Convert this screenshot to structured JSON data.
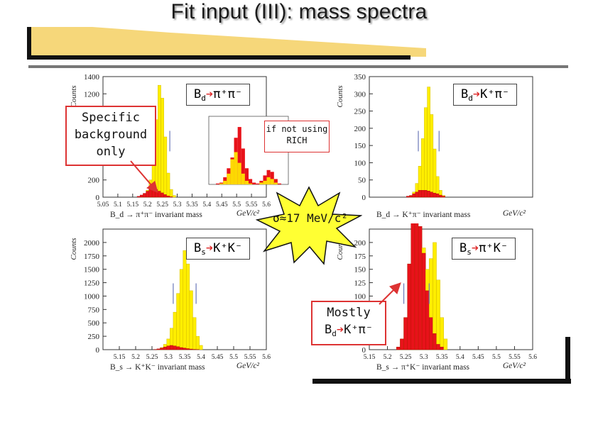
{
  "title": "Fit input (III): mass spectra",
  "labels": {
    "bd_pipi_B": "B",
    "bd_pipi_d": "d",
    "bd_pipi_rest": "π⁺π⁻",
    "bd_kpi_B": "B",
    "bd_kpi_d": "d",
    "bd_kpi_rest": "K⁺π⁻",
    "bs_kk_B": "B",
    "bs_kk_s": "s",
    "bs_kk_rest": "K⁺K⁻",
    "bs_pik_B": "B",
    "bs_pik_s": "s",
    "bs_pik_rest": "π⁺K⁻",
    "specific": "Specific background only",
    "specific_l1": "Specific",
    "specific_l2": "background",
    "specific_l3": "only",
    "rich_l1": "if not using",
    "rich_l2": "RICH",
    "sigma": "σ≈17 MeV/c²",
    "mostly_l1": "Mostly",
    "mostly_l2_B": "B",
    "mostly_l2_d": "d",
    "mostly_l2_rest": "K⁺π⁻"
  },
  "colors": {
    "signal": "#ffee00",
    "background": "#e8121a",
    "frame": "#222222",
    "title_bar": "#f6d77a"
  },
  "chart_data": [
    {
      "type": "bar",
      "name": "Bd->pi+pi-",
      "xlabel": "B_d → π⁺π⁻ invariant mass",
      "xunit": "GeV/c²",
      "ylabel": "Counts",
      "xlim": [
        5.05,
        5.6
      ],
      "ylim": [
        0,
        1400
      ],
      "xticks": [
        "5.05",
        "5.1",
        "5.15",
        "5.2",
        "5.25",
        "5.3",
        "5.35",
        "5.4",
        "5.45",
        "5.5",
        "5.55",
        "5.6"
      ],
      "yticks": [
        "0",
        "200",
        "400",
        "600",
        "800",
        "1000",
        "1200",
        "1400"
      ],
      "x": [
        5.16,
        5.17,
        5.18,
        5.19,
        5.2,
        5.21,
        5.22,
        5.23,
        5.24,
        5.25,
        5.26,
        5.27,
        5.28,
        5.29,
        5.3
      ],
      "signal": [
        0,
        0,
        10,
        30,
        80,
        200,
        480,
        900,
        1300,
        1150,
        700,
        280,
        90,
        20,
        0
      ],
      "background": [
        0,
        10,
        25,
        45,
        70,
        100,
        110,
        90,
        70,
        50,
        30,
        15,
        5,
        0,
        0
      ]
    },
    {
      "type": "bar",
      "name": "Bd->K+pi-",
      "xlabel": "B_d → K⁺π⁻ invariant mass",
      "xunit": "GeV/c²",
      "ylabel": "Counts",
      "xlim": [
        5.05,
        5.6
      ],
      "ylim": [
        0,
        350
      ],
      "yticks": [
        "0",
        "50",
        "100",
        "150",
        "200",
        "250",
        "300",
        "350"
      ],
      "x": [
        5.18,
        5.19,
        5.2,
        5.21,
        5.22,
        5.23,
        5.24,
        5.25,
        5.26,
        5.27,
        5.28,
        5.29,
        5.3,
        5.31
      ],
      "signal": [
        0,
        5,
        15,
        40,
        90,
        170,
        260,
        320,
        240,
        140,
        60,
        20,
        5,
        0
      ],
      "background": [
        3,
        5,
        10,
        15,
        20,
        20,
        20,
        18,
        15,
        12,
        10,
        6,
        3,
        0
      ]
    },
    {
      "type": "bar",
      "name": "Bs->K+K-",
      "xlabel": "B_s → K⁺K⁻ invariant mass",
      "xunit": "GeV/c²",
      "ylabel": "Counts",
      "xlim": [
        5.1,
        5.6
      ],
      "ylim": [
        0,
        2250
      ],
      "xticks": [
        "5.15",
        "5.2",
        "5.25",
        "5.3",
        "5.35",
        "5.4",
        "5.45",
        "5.5",
        "5.55",
        "5.6"
      ],
      "yticks": [
        "0",
        "250",
        "500",
        "750",
        "1000",
        "1250",
        "1500",
        "1750",
        "2000"
      ],
      "x": [
        5.26,
        5.27,
        5.28,
        5.29,
        5.3,
        5.31,
        5.32,
        5.33,
        5.34,
        5.35,
        5.36,
        5.37,
        5.38,
        5.39,
        5.4,
        5.41
      ],
      "signal": [
        0,
        10,
        40,
        100,
        200,
        400,
        700,
        1050,
        1500,
        1850,
        1600,
        1100,
        600,
        250,
        80,
        0
      ],
      "background": [
        5,
        15,
        30,
        50,
        70,
        80,
        70,
        55,
        40,
        30,
        20,
        12,
        6,
        3,
        0,
        0
      ]
    },
    {
      "type": "bar",
      "name": "Bs->pi+K-",
      "xlabel": "B_s → π⁺K⁻ invariant mass",
      "xunit": "GeV/c²",
      "ylabel": "Counts",
      "xlim": [
        5.15,
        5.6
      ],
      "ylim": [
        0,
        225
      ],
      "xticks": [
        "5.15",
        "5.2",
        "5.25",
        "5.3",
        "5.35",
        "5.4",
        "5.45",
        "5.5",
        "5.55",
        "5.6"
      ],
      "yticks": [
        "0",
        "25",
        "50",
        "75",
        "100",
        "125",
        "150",
        "175",
        "200"
      ],
      "x": [
        5.22,
        5.23,
        5.24,
        5.25,
        5.26,
        5.27,
        5.28,
        5.29,
        5.3,
        5.31,
        5.32,
        5.33,
        5.34,
        5.35,
        5.36,
        5.37
      ],
      "signal": [
        0,
        5,
        20,
        60,
        160,
        240,
        250,
        230,
        190,
        150,
        170,
        200,
        130,
        60,
        20,
        0
      ],
      "background": [
        0,
        5,
        20,
        60,
        160,
        240,
        250,
        230,
        180,
        110,
        60,
        30,
        10,
        5,
        0,
        0
      ]
    }
  ],
  "inset": {
    "name": "Bd->pi+pi- without RICH (inset)",
    "signal": [
      0,
      5,
      20,
      60,
      140,
      180,
      120,
      60,
      20,
      5,
      0,
      0,
      10,
      20,
      40,
      30,
      10,
      0
    ],
    "background": [
      5,
      10,
      40,
      90,
      150,
      260,
      320,
      200,
      90,
      30,
      10,
      5,
      20,
      50,
      80,
      70,
      30,
      5
    ]
  }
}
